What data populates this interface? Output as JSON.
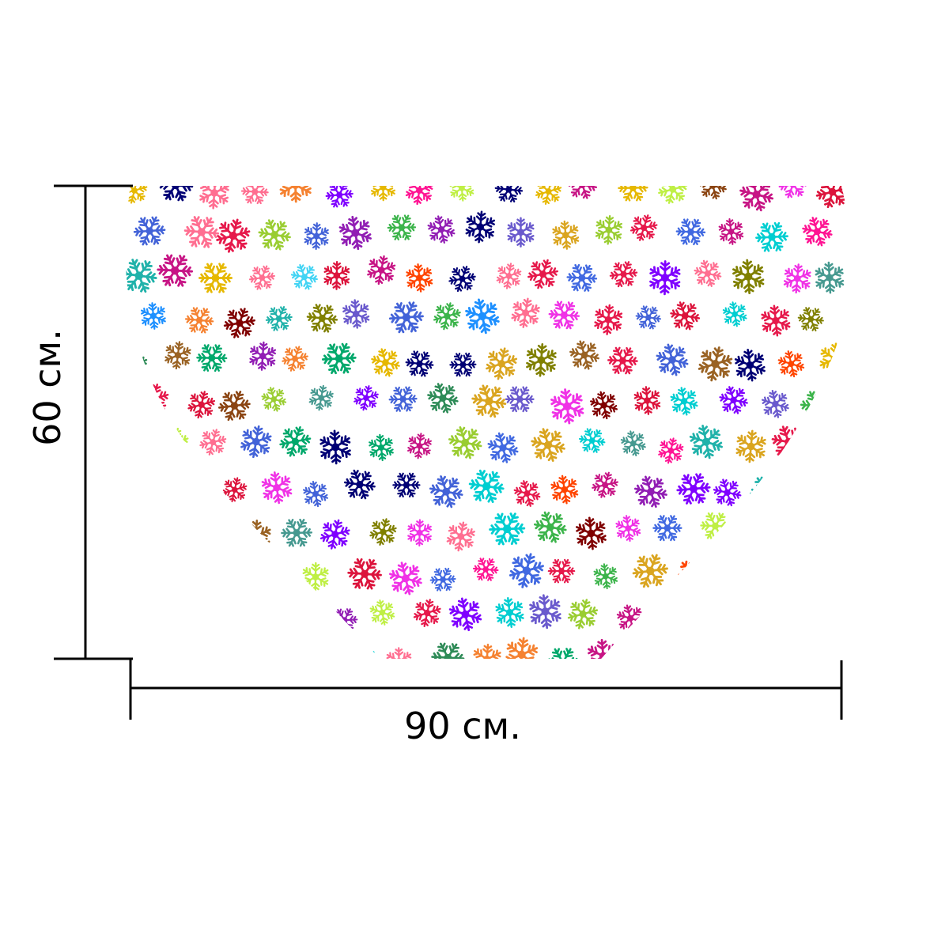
{
  "dimensions": {
    "width_label": "90 см.",
    "height_label": "60 см."
  },
  "mat": {
    "shape": "heart-half",
    "pattern": "multicolor-snowflakes"
  },
  "colors": {
    "line": "#000000",
    "background": "#ffffff",
    "palette": [
      "#e6194b",
      "#3cb44b",
      "#4363d8",
      "#f58231",
      "#911eb4",
      "#42d4f4",
      "#f032e6",
      "#bfef45",
      "#469990",
      "#9a6324",
      "#800000",
      "#808000",
      "#000075",
      "#e6b800",
      "#ff6f91",
      "#00a86b",
      "#7f00ff",
      "#ff4500",
      "#1e90ff",
      "#c71585",
      "#2e8b57",
      "#daa520",
      "#6a5acd",
      "#ff1493",
      "#20b2aa",
      "#8b4513",
      "#9acd32",
      "#4169e1",
      "#dc143c",
      "#00ced1"
    ]
  }
}
